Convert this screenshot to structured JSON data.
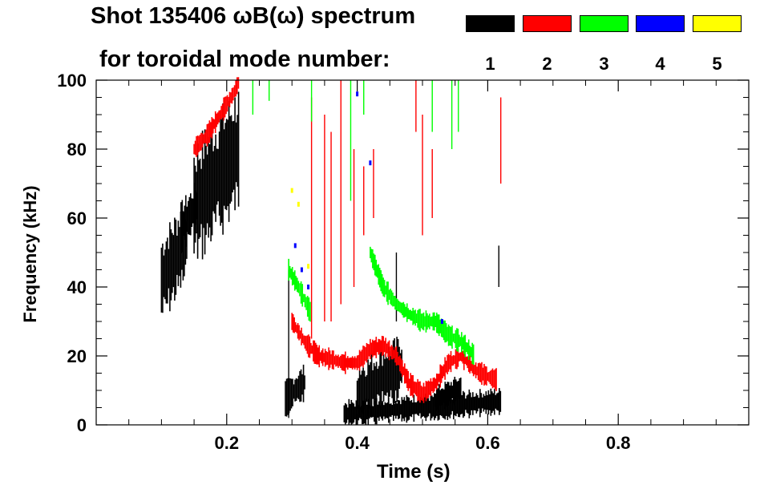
{
  "header": {
    "title_line1": "Shot 135406 ωB(ω) spectrum",
    "title_line2": "for toroidal mode number:"
  },
  "legend": [
    {
      "label": "1",
      "color": "#000000"
    },
    {
      "label": "2",
      "color": "#ff0000"
    },
    {
      "label": "3",
      "color": "#00ff00"
    },
    {
      "label": "4",
      "color": "#0000ff"
    },
    {
      "label": "5",
      "color": "#ffff00"
    }
  ],
  "chart_data": {
    "type": "heatmap",
    "title": "Shot 135406 ωB(ω) spectrum",
    "subtitle": "for toroidal mode number:",
    "xlabel": "Time (s)",
    "ylabel": "Frequency (kHz)",
    "xlim": [
      0.0,
      1.0
    ],
    "ylim": [
      0,
      100
    ],
    "x_ticks": [
      0.2,
      0.4,
      0.6,
      0.8
    ],
    "x_tick_labels": [
      "0.2",
      "0.4",
      "0.6",
      "0.8"
    ],
    "y_ticks": [
      0,
      20,
      40,
      60,
      80,
      100
    ],
    "y_tick_labels": [
      "0",
      "20",
      "40",
      "60",
      "80",
      "100"
    ],
    "grid": false,
    "legend_position": "top-right",
    "series": [
      {
        "mode": "1",
        "color": "#000000",
        "blobs": [
          {
            "t0": 0.1,
            "t1": 0.14,
            "f0": 38,
            "f1": 58
          },
          {
            "t0": 0.13,
            "t1": 0.155,
            "f0": 55,
            "f1": 66
          },
          {
            "t0": 0.15,
            "t1": 0.22,
            "f0": 58,
            "f1": 86
          },
          {
            "t0": 0.29,
            "t1": 0.32,
            "f0": 6,
            "f1": 14
          },
          {
            "t0": 0.38,
            "t1": 0.62,
            "f0": 2,
            "f1": 8
          },
          {
            "t0": 0.4,
            "t1": 0.47,
            "f0": 6,
            "f1": 20
          },
          {
            "t0": 0.52,
            "t1": 0.56,
            "f0": 6,
            "f1": 12
          }
        ],
        "streaks": [
          {
            "t": 0.295,
            "f0": 2,
            "f1": 45
          },
          {
            "t": 0.46,
            "f0": 30,
            "f1": 50
          },
          {
            "t": 0.617,
            "f0": 40,
            "f1": 52
          }
        ]
      },
      {
        "mode": "2",
        "color": "#ff0000",
        "ridges": [
          [
            [
              0.15,
              80
            ],
            [
              0.17,
              84
            ],
            [
              0.19,
              90
            ],
            [
              0.21,
              96
            ],
            [
              0.22,
              100
            ]
          ],
          [
            [
              0.3,
              30
            ],
            [
              0.32,
              24
            ],
            [
              0.34,
              20
            ],
            [
              0.38,
              18
            ],
            [
              0.4,
              18
            ],
            [
              0.42,
              22
            ],
            [
              0.44,
              23
            ],
            [
              0.46,
              20
            ],
            [
              0.48,
              12
            ],
            [
              0.5,
              9
            ],
            [
              0.52,
              12
            ],
            [
              0.54,
              18
            ],
            [
              0.56,
              20
            ],
            [
              0.58,
              16
            ],
            [
              0.6,
              14
            ],
            [
              0.615,
              13
            ]
          ]
        ],
        "streaks": [
          {
            "t": 0.33,
            "f0": 25,
            "f1": 95
          },
          {
            "t": 0.35,
            "f0": 30,
            "f1": 90
          },
          {
            "t": 0.36,
            "f0": 30,
            "f1": 85
          },
          {
            "t": 0.375,
            "f0": 35,
            "f1": 100
          },
          {
            "t": 0.395,
            "f0": 40,
            "f1": 80
          },
          {
            "t": 0.41,
            "f0": 55,
            "f1": 75
          },
          {
            "t": 0.425,
            "f0": 60,
            "f1": 80
          },
          {
            "t": 0.49,
            "f0": 85,
            "f1": 100
          },
          {
            "t": 0.5,
            "f0": 55,
            "f1": 90
          },
          {
            "t": 0.515,
            "f0": 60,
            "f1": 80
          },
          {
            "t": 0.62,
            "f0": 70,
            "f1": 95
          }
        ]
      },
      {
        "mode": "3",
        "color": "#00ff00",
        "ridges": [
          [
            [
              0.295,
              45
            ],
            [
              0.31,
              40
            ],
            [
              0.32,
              36
            ],
            [
              0.33,
              32
            ]
          ],
          [
            [
              0.42,
              50
            ],
            [
              0.44,
              40
            ],
            [
              0.46,
              35
            ],
            [
              0.48,
              32
            ],
            [
              0.5,
              30
            ],
            [
              0.52,
              30
            ],
            [
              0.54,
              26
            ],
            [
              0.56,
              24
            ],
            [
              0.58,
              20
            ]
          ]
        ],
        "streaks": [
          {
            "t": 0.24,
            "f0": 90,
            "f1": 100
          },
          {
            "t": 0.265,
            "f0": 94,
            "f1": 100
          },
          {
            "t": 0.33,
            "f0": 88,
            "f1": 100
          },
          {
            "t": 0.39,
            "f0": 65,
            "f1": 100
          },
          {
            "t": 0.41,
            "f0": 90,
            "f1": 100
          },
          {
            "t": 0.515,
            "f0": 85,
            "f1": 100
          },
          {
            "t": 0.545,
            "f0": 80,
            "f1": 100
          },
          {
            "t": 0.555,
            "f0": 85,
            "f1": 100
          }
        ]
      },
      {
        "mode": "4",
        "color": "#0000ff",
        "points": [
          [
            0.305,
            52
          ],
          [
            0.315,
            45
          ],
          [
            0.325,
            40
          ],
          [
            0.42,
            76
          ],
          [
            0.4,
            96
          ],
          [
            0.53,
            30
          ]
        ]
      },
      {
        "mode": "5",
        "color": "#ffff00",
        "points": [
          [
            0.3,
            68
          ],
          [
            0.31,
            64
          ],
          [
            0.325,
            46
          ]
        ]
      }
    ]
  }
}
